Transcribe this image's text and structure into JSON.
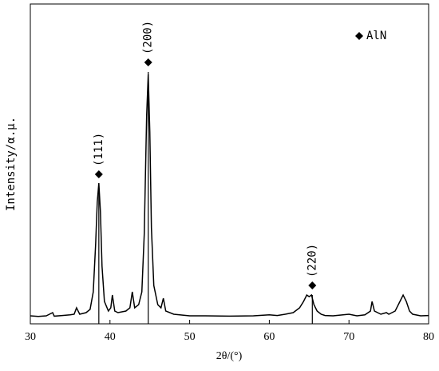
{
  "chart_data": {
    "type": "line",
    "x_label": "2θ/(°)",
    "y_label": "Intensity/α.μ.",
    "x": [
      30,
      31,
      32,
      32.8,
      33,
      34,
      35,
      35.5,
      35.8,
      36.2,
      37,
      37.5,
      37.9,
      38.2,
      38.4,
      38.6,
      38.8,
      39,
      39.3,
      39.8,
      40.1,
      40.3,
      40.6,
      41,
      42,
      42.5,
      42.8,
      43.1,
      43.6,
      44,
      44.3,
      44.6,
      44.8,
      45,
      45.2,
      45.5,
      46,
      46.4,
      46.7,
      47,
      48,
      50,
      52,
      55,
      58,
      60,
      61,
      62,
      63,
      63.8,
      64.3,
      64.7,
      65,
      65.3,
      65.6,
      66,
      66.5,
      67,
      68,
      70,
      71,
      72,
      72.7,
      72.9,
      73.2,
      74,
      74.7,
      75,
      75.8,
      76.3,
      76.8,
      77.2,
      77.6,
      78,
      79,
      80
    ],
    "series": [
      {
        "name": "AlN",
        "color": "#000000",
        "values": [
          2.5,
          2.3,
          2.5,
          3.5,
          2.4,
          2.6,
          2.8,
          3,
          5,
          3,
          3.5,
          4.5,
          10,
          25,
          38,
          44,
          35,
          18,
          7,
          4,
          5,
          9,
          4,
          3.5,
          4,
          5,
          10,
          5,
          6,
          10,
          28,
          65,
          78,
          60,
          30,
          12,
          6,
          5,
          8,
          4,
          3,
          2.5,
          2.5,
          2.4,
          2.5,
          2.8,
          2.6,
          3,
          3.5,
          5,
          7,
          9,
          8.5,
          9,
          6,
          4,
          3,
          2.6,
          2.5,
          3,
          2.5,
          2.8,
          4,
          7,
          4,
          3,
          3.5,
          3,
          4,
          6.5,
          9,
          7,
          4,
          3,
          2.5,
          2.6
        ]
      }
    ],
    "annotations": [
      {
        "x": 38.6,
        "y": 46.75,
        "label": "(111)"
      },
      {
        "x": 44.8,
        "y": 81.75,
        "label": "(200)"
      },
      {
        "x": 65.4,
        "y": 12,
        "label": "(220)"
      }
    ],
    "xlim": [
      30,
      80
    ],
    "xticks": [
      30,
      40,
      50,
      60,
      70,
      80
    ],
    "ylim": [
      0,
      100
    ],
    "legend": "upper right"
  }
}
